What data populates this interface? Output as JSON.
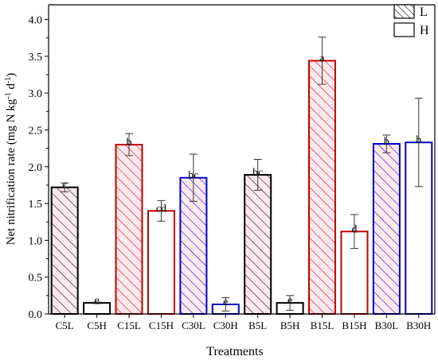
{
  "chart_data": {
    "type": "bar",
    "title": "",
    "xlabel": "Treatments",
    "ylabel_parts": [
      "Net nitrification rate (mg N kg",
      "-1",
      " d",
      "-1",
      ")"
    ],
    "ylim": [
      0,
      4.2
    ],
    "yticks": [
      "0.0",
      "0.5",
      "1.0",
      "1.5",
      "2.0",
      "2.5",
      "3.0",
      "3.5",
      "4.0"
    ],
    "grid": false,
    "legend_position": "top-right",
    "legend": [
      {
        "label": "L",
        "pattern": "hatched"
      },
      {
        "label": "H",
        "pattern": "open"
      }
    ],
    "series_colors": {
      "C5": "#000000",
      "C15": "#c00000",
      "C30": "#0000cc",
      "B5": "#000000",
      "B15": "#c00000",
      "B30": "#0000cc"
    },
    "categories": [
      "C5L",
      "C5H",
      "C15L",
      "C15H",
      "C30L",
      "C30H",
      "B5L",
      "B5H",
      "B15L",
      "B15H",
      "B30L",
      "B30H"
    ],
    "bars": [
      {
        "category": "C5L",
        "value": 1.72,
        "error": 0.06,
        "label": "c",
        "color": "#000000",
        "hatched": true
      },
      {
        "category": "C5H",
        "value": 0.15,
        "error": 0.01,
        "label": "e",
        "color": "#000000",
        "hatched": false
      },
      {
        "category": "C15L",
        "value": 2.3,
        "error": 0.15,
        "label": "b",
        "color": "#c00000",
        "hatched": true
      },
      {
        "category": "C15H",
        "value": 1.4,
        "error": 0.14,
        "label": "cd",
        "color": "#c00000",
        "hatched": false
      },
      {
        "category": "C30L",
        "value": 1.85,
        "error": 0.32,
        "label": "bc",
        "color": "#0000cc",
        "hatched": true
      },
      {
        "category": "C30H",
        "value": 0.13,
        "error": 0.09,
        "label": "e",
        "color": "#0000cc",
        "hatched": false
      },
      {
        "category": "B5L",
        "value": 1.89,
        "error": 0.21,
        "label": "bc",
        "color": "#000000",
        "hatched": true
      },
      {
        "category": "B5H",
        "value": 0.15,
        "error": 0.1,
        "label": "e",
        "color": "#000000",
        "hatched": false
      },
      {
        "category": "B15L",
        "value": 3.44,
        "error": 0.32,
        "label": "a",
        "color": "#c00000",
        "hatched": true
      },
      {
        "category": "B15H",
        "value": 1.12,
        "error": 0.23,
        "label": "d",
        "color": "#c00000",
        "hatched": false
      },
      {
        "category": "B30L",
        "value": 2.31,
        "error": 0.12,
        "label": "b",
        "color": "#0000cc",
        "hatched": true
      },
      {
        "category": "B30H",
        "value": 2.33,
        "error": 0.6,
        "label": "b",
        "color": "#0000cc",
        "hatched": false
      }
    ]
  }
}
